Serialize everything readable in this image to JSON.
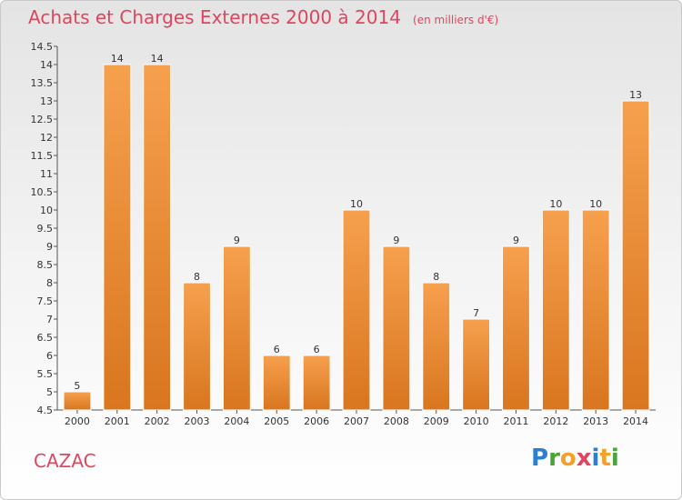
{
  "header": {
    "title": "Achats et Charges Externes 2000 à 2014",
    "subtitle": "(en milliers d'€)"
  },
  "footer": {
    "place": "CAZAC",
    "brand": "Proxiti"
  },
  "colors": {
    "title": "#e0455e",
    "bar_light": "#f6a04e",
    "bar_dark": "#d9761f",
    "bar_stroke": "#ffffff"
  },
  "chart_data": {
    "type": "bar",
    "categories": [
      "2000",
      "2001",
      "2002",
      "2003",
      "2004",
      "2005",
      "2006",
      "2007",
      "2008",
      "2009",
      "2010",
      "2011",
      "2012",
      "2013",
      "2014"
    ],
    "values": [
      5,
      14,
      14,
      8,
      9,
      6,
      6,
      10,
      9,
      8,
      7,
      9,
      10,
      10,
      13
    ],
    "data_labels": [
      "5",
      "14",
      "14",
      "8",
      "9",
      "6",
      "6",
      "10",
      "9",
      "8",
      "7",
      "9",
      "10",
      "10",
      "13"
    ],
    "yticks": [
      "4.5",
      "5",
      "5.5",
      "6",
      "6.5",
      "7",
      "7.5",
      "8",
      "8.5",
      "9",
      "9.5",
      "10",
      "10.5",
      "11",
      "11.5",
      "12",
      "12.5",
      "13",
      "13.5",
      "14",
      "14.5"
    ],
    "ylim": [
      4.5,
      14.5
    ],
    "grid": false,
    "legend": "none"
  }
}
